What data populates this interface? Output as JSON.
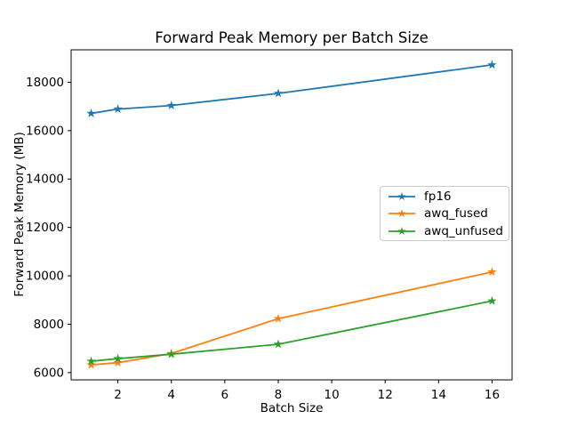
{
  "chart_data": {
    "type": "line",
    "title": "Forward Peak Memory per Batch Size",
    "xlabel": "Batch Size",
    "ylabel": "Forward Peak Memory (MB)",
    "x": [
      1,
      2,
      4,
      8,
      16
    ],
    "series": [
      {
        "name": "fp16",
        "color": "#1f77b4",
        "values": [
          16710,
          16890,
          17040,
          17540,
          18720
        ]
      },
      {
        "name": "awq_fused",
        "color": "#ff7f0e",
        "values": [
          6320,
          6410,
          6790,
          8230,
          10160
        ]
      },
      {
        "name": "awq_unfused",
        "color": "#2ca02c",
        "values": [
          6470,
          6580,
          6760,
          7170,
          8960
        ]
      }
    ],
    "xticks": [
      2,
      4,
      6,
      8,
      10,
      12,
      14,
      16
    ],
    "yticks": [
      6000,
      8000,
      10000,
      12000,
      14000,
      16000,
      18000
    ],
    "xlim": [
      0.25,
      16.75
    ],
    "ylim": [
      5700,
      19340
    ],
    "grid": false,
    "marker": "star",
    "legend": {
      "position": "center-right",
      "border_color": "#cccccc",
      "background": "#ffffff"
    },
    "text_color": "#000000",
    "background": "#ffffff"
  }
}
